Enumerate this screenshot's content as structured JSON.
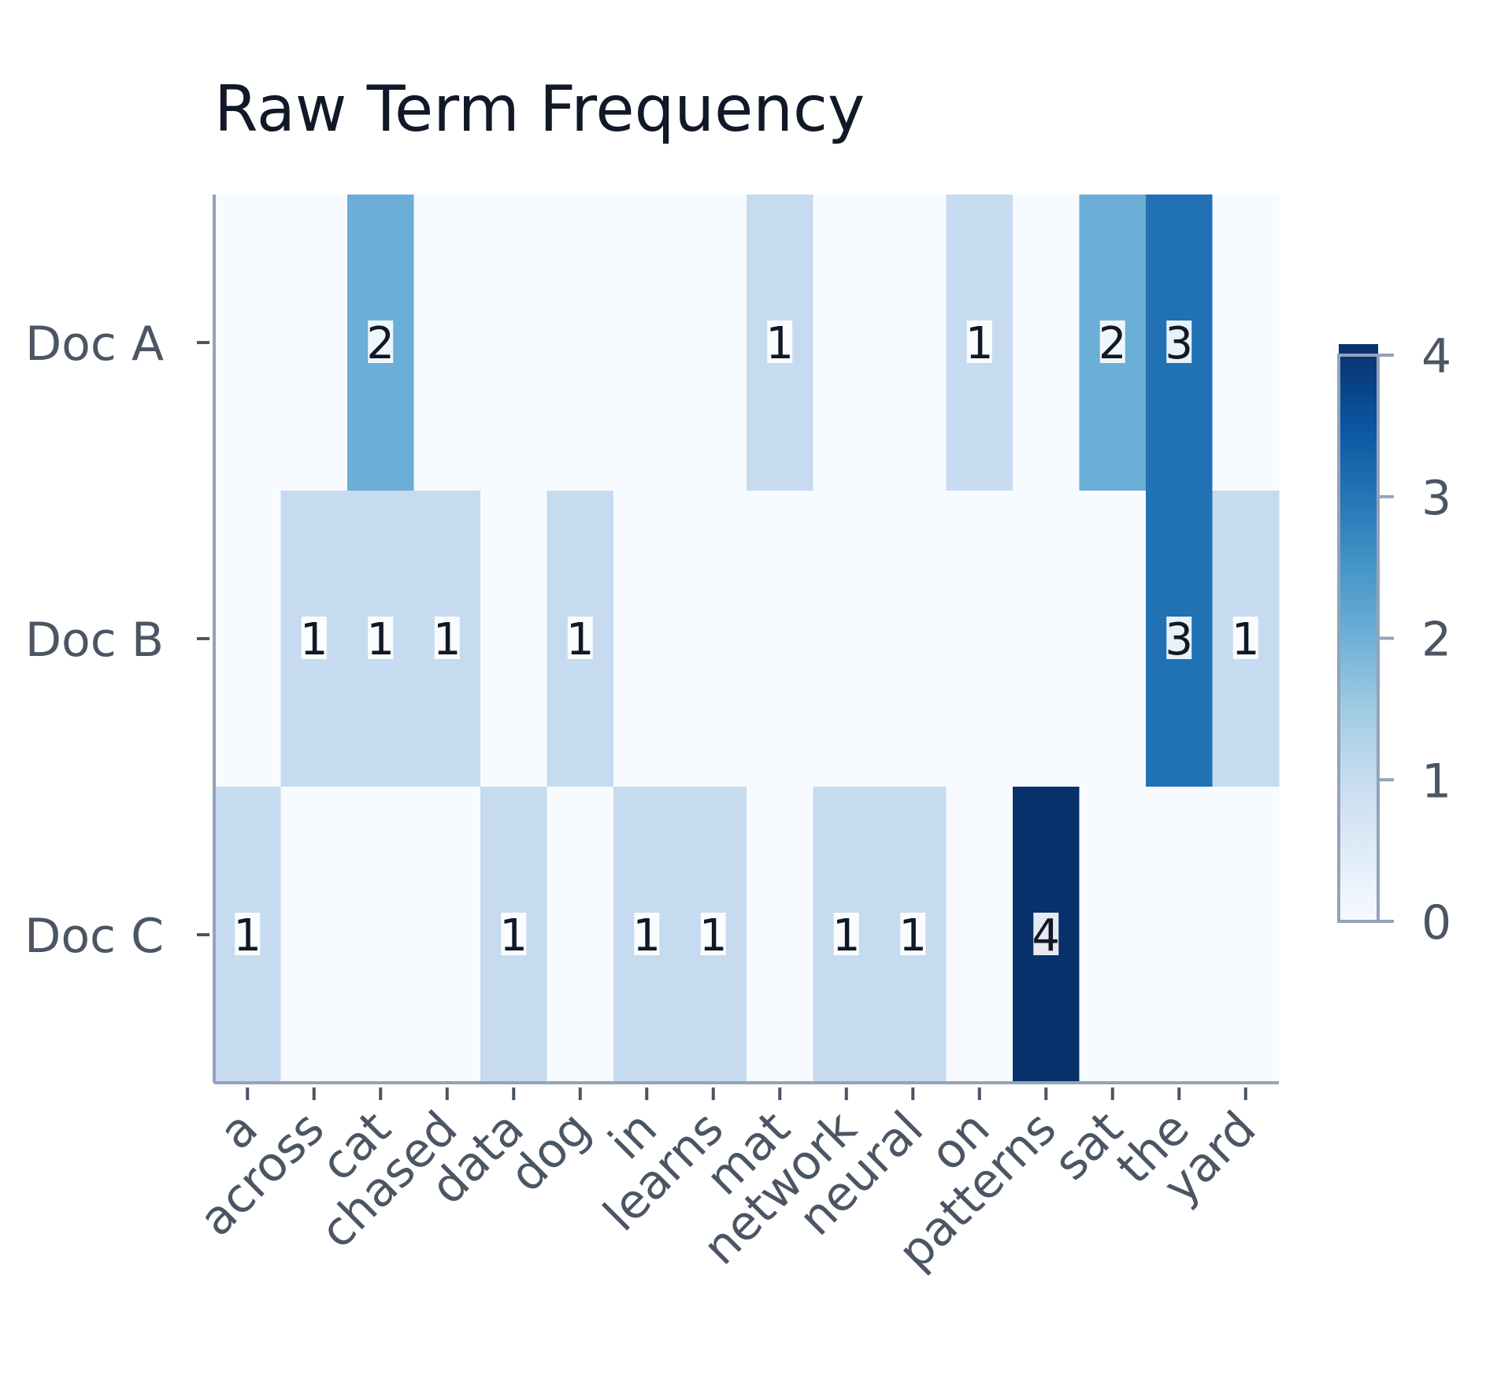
{
  "chart_data": {
    "type": "heatmap",
    "title": "Raw Term Frequency",
    "rows": [
      "Doc A",
      "Doc B",
      "Doc C"
    ],
    "columns": [
      "a",
      "across",
      "cat",
      "chased",
      "data",
      "dog",
      "in",
      "learns",
      "mat",
      "network",
      "neural",
      "on",
      "patterns",
      "sat",
      "the",
      "yard"
    ],
    "values": [
      [
        0,
        0,
        2,
        0,
        0,
        0,
        0,
        0,
        1,
        0,
        0,
        1,
        0,
        2,
        3,
        0
      ],
      [
        0,
        1,
        1,
        1,
        0,
        1,
        0,
        0,
        0,
        0,
        0,
        0,
        0,
        0,
        3,
        1
      ],
      [
        1,
        0,
        0,
        0,
        1,
        0,
        1,
        1,
        0,
        1,
        1,
        0,
        4,
        0,
        0,
        0
      ]
    ],
    "annotate_zeros": false,
    "colormap": "Blues",
    "color_range": [
      0,
      4
    ],
    "colorbar": {
      "ticks": [
        "0",
        "1",
        "2",
        "3",
        "4"
      ],
      "position": "right"
    },
    "colors": {
      "0": "#f7fbff",
      "1": "#c6dbef",
      "2": "#6baed6",
      "3": "#2171b5",
      "4": "#08306b"
    }
  }
}
